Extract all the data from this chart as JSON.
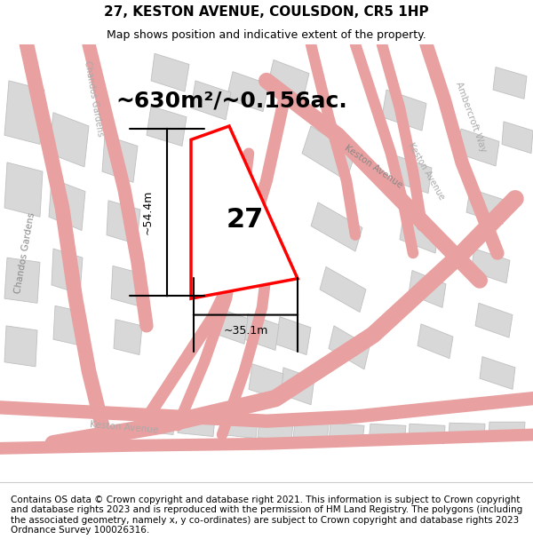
{
  "title": "27, KESTON AVENUE, COULSDON, CR5 1HP",
  "subtitle": "Map shows position and indicative extent of the property.",
  "area_text": "~630m²/~0.156ac.",
  "number_label": "27",
  "dim_height": "~54.4m",
  "dim_width": "~35.1m",
  "footer": "Contains OS data © Crown copyright and database right 2021. This information is subject to Crown copyright and database rights 2023 and is reproduced with the permission of HM Land Registry. The polygons (including the associated geometry, namely x, y co-ordinates) are subject to Crown copyright and database rights 2023 Ordnance Survey 100026316.",
  "map_bg": "#f5f5f0",
  "plot_bg": "#ffffff",
  "road_color": "#e8a0a0",
  "block_color": "#d8d8d8",
  "block_edge": "#c0c0c0",
  "highlight_color": "#ff0000",
  "title_fontsize": 11,
  "subtitle_fontsize": 9,
  "area_fontsize": 18,
  "footer_fontsize": 7.5
}
